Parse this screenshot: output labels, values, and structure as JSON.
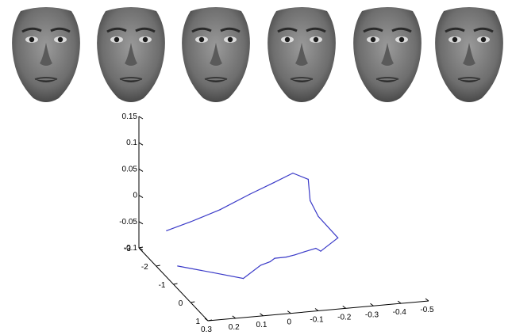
{
  "faces": [
    {
      "icon": "face-image"
    },
    {
      "icon": "face-image"
    },
    {
      "icon": "face-image"
    },
    {
      "icon": "face-image"
    },
    {
      "icon": "face-image"
    },
    {
      "icon": "face-image"
    }
  ],
  "chart_data": {
    "type": "line",
    "projection": "3d",
    "title": "",
    "xlabel": "",
    "ylabel": "",
    "zlabel": "",
    "grid": false,
    "line_color": "#3a3ac8",
    "axis_color": "#000000",
    "x_ticks": [
      "0.3",
      "0.2",
      "0.1",
      "0",
      "-0.1",
      "-0.2",
      "-0.3",
      "-0.4",
      "-0.5"
    ],
    "y_ticks": [
      "-3",
      "-2",
      "-1",
      "0",
      "1"
    ],
    "z_ticks": [
      "0.15",
      "0.1",
      "0.05",
      "0",
      "-0.05",
      "-0.1"
    ],
    "xlim": [
      0.3,
      -0.5
    ],
    "ylim": [
      -3,
      1
    ],
    "zlim": [
      -0.1,
      0.15
    ],
    "trajectory": [
      {
        "x": 0.245,
        "y": -2.28,
        "z": -0.045
      },
      {
        "x": 0.159,
        "y": -2.25,
        "z": -0.031
      },
      {
        "x": 0.058,
        "y": -2.17,
        "z": -0.01
      },
      {
        "x": -0.048,
        "y": -2.13,
        "z": 0.016
      },
      {
        "x": -0.131,
        "y": -2.07,
        "z": 0.036
      },
      {
        "x": -0.198,
        "y": -2.04,
        "z": 0.052
      },
      {
        "x": -0.253,
        "y": -2.03,
        "z": 0.038
      },
      {
        "x": -0.252,
        "y": -1.9,
        "z": 0.002
      },
      {
        "x": -0.269,
        "y": -1.7,
        "z": -0.022
      },
      {
        "x": -0.32,
        "y": -1.38,
        "z": -0.054
      },
      {
        "x": -0.247,
        "y": -1.21,
        "z": -0.07
      },
      {
        "x": -0.23,
        "y": -1.22,
        "z": -0.064
      },
      {
        "x": -0.187,
        "y": -1.22,
        "z": -0.069
      },
      {
        "x": -0.154,
        "y": -1.22,
        "z": -0.073
      },
      {
        "x": -0.118,
        "y": -1.15,
        "z": -0.073
      },
      {
        "x": -0.076,
        "y": -1.14,
        "z": -0.073
      },
      {
        "x": -0.051,
        "y": -1.01,
        "z": -0.074
      },
      {
        "x": -0.017,
        "y": -1.01,
        "z": -0.079
      },
      {
        "x": 0.058,
        "y": -0.82,
        "z": -0.094
      },
      {
        "x": 0.153,
        "y": -1.07,
        "z": -0.087
      },
      {
        "x": 0.26,
        "y": -1.4,
        "z": -0.081
      }
    ]
  }
}
